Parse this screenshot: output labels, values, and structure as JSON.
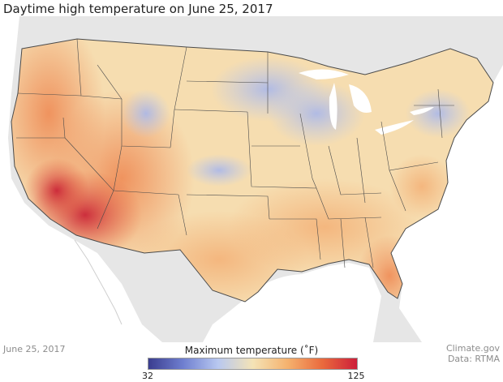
{
  "title": "Daytime high temperature on June 25, 2017",
  "date_label": "June 25, 2017",
  "credit": {
    "source": "Climate.gov",
    "data": "Data: RTMA"
  },
  "legend": {
    "title": "Maximum temperature (˚F)",
    "min": "32",
    "max": "125",
    "colors": [
      "#3a3d8f",
      "#6f7fd0",
      "#b8c8f0",
      "#f4e3b6",
      "#f5b26e",
      "#ea6a3d",
      "#cd1f3a"
    ]
  },
  "colors": {
    "land_background": "#e6e6e6",
    "water": "#ffffff",
    "state_border": "#4a4a4a"
  }
}
